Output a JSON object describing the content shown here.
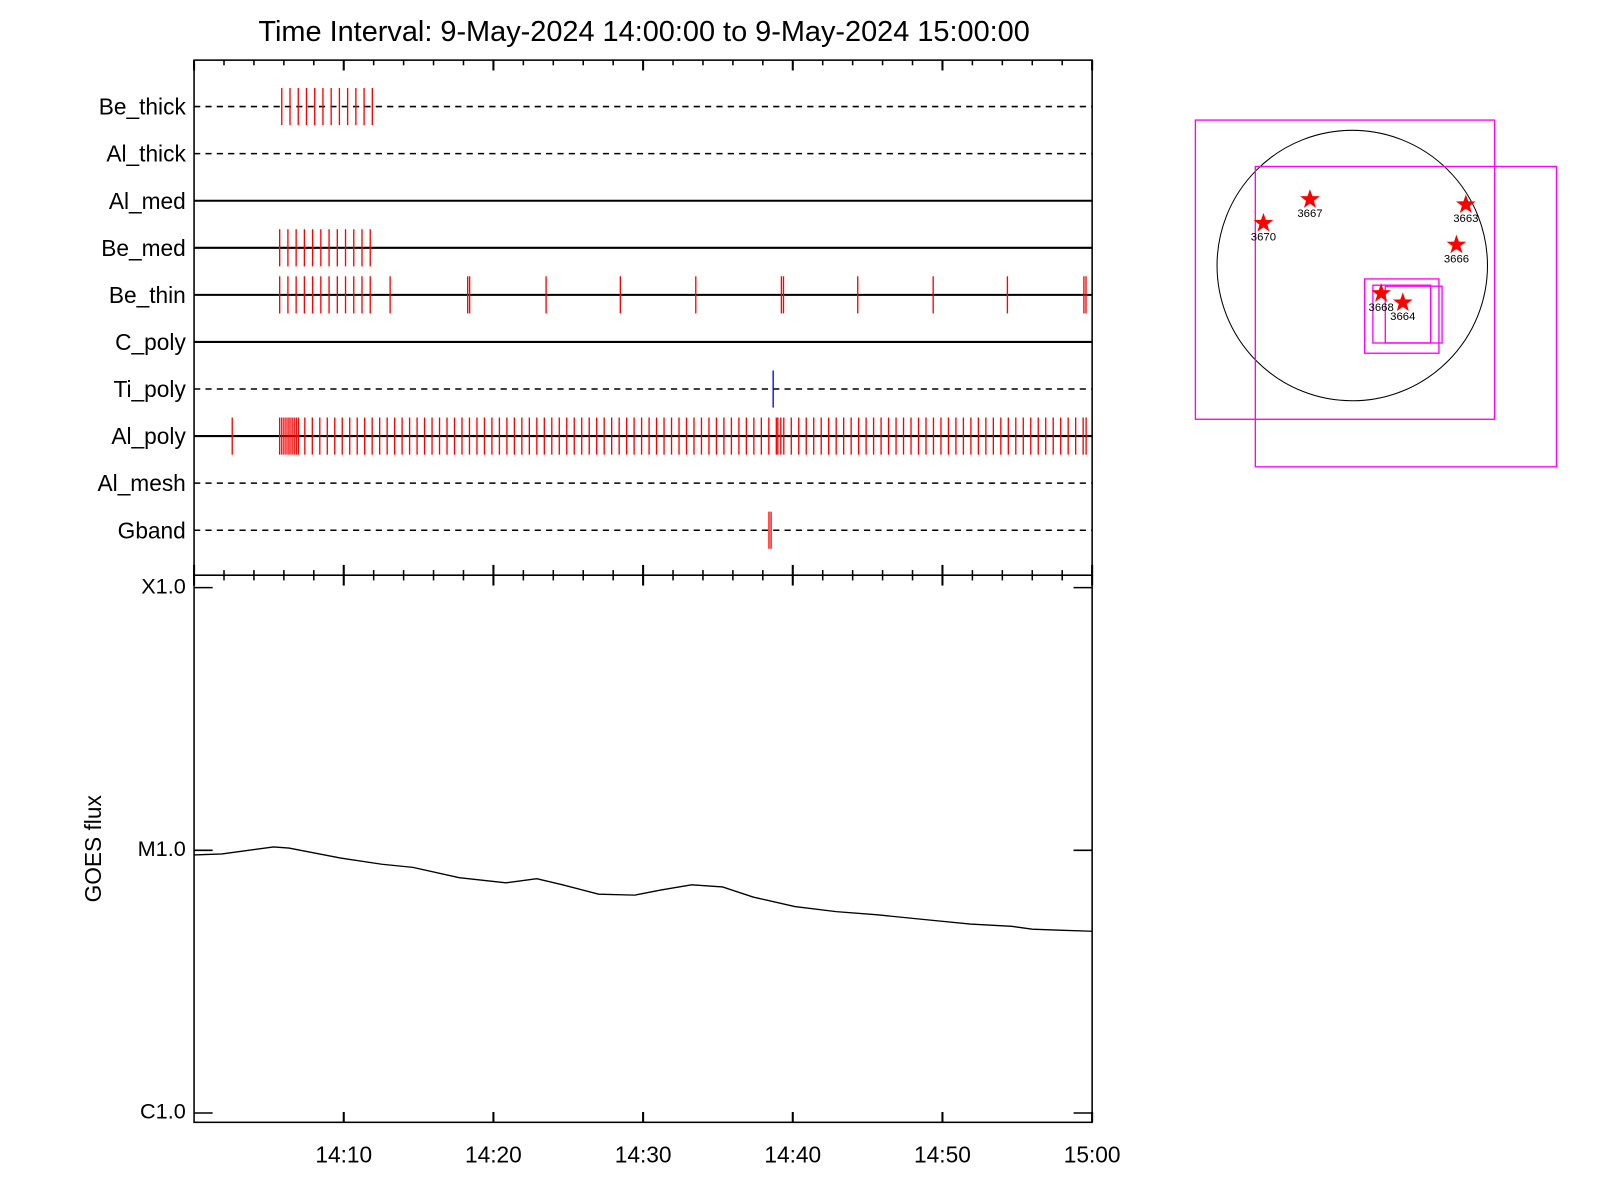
{
  "chart_data": [
    {
      "type": "events",
      "title": "Time Interval:  9-May-2024 14:00:00 to  9-May-2024 15:00:00",
      "xlim": [
        0,
        60
      ],
      "xticks": [
        0,
        10,
        20,
        30,
        40,
        50,
        60
      ],
      "xminorticks": [
        2,
        4,
        6,
        8,
        12,
        14,
        16,
        18,
        22,
        24,
        26,
        28,
        32,
        34,
        36,
        38,
        42,
        44,
        46,
        48,
        52,
        54,
        56,
        58
      ],
      "channels": [
        {
          "name": "Be_thick",
          "style": "dashed",
          "color": "#ff0000",
          "events": [
            5.86,
            6.41,
            6.96,
            7.51,
            8.06,
            8.61,
            9.16,
            9.71,
            10.26,
            10.81,
            11.36,
            11.91
          ]
        },
        {
          "name": "Al_thick",
          "style": "dashed",
          "color": "#ff0000",
          "events": []
        },
        {
          "name": "Al_med",
          "style": "solid",
          "color": "#ff0000",
          "events": []
        },
        {
          "name": "Be_med",
          "style": "solid",
          "color": "#ff0000",
          "events": [
            5.72,
            6.27,
            6.82,
            7.37,
            7.92,
            8.47,
            9.02,
            9.57,
            10.12,
            10.67,
            11.22,
            11.77
          ]
        },
        {
          "name": "Be_thin",
          "style": "solid",
          "color": "#ff0000",
          "events": [
            5.72,
            6.27,
            6.82,
            7.37,
            7.92,
            8.47,
            9.02,
            9.57,
            10.12,
            10.67,
            11.22,
            11.77,
            13.1,
            18.28,
            18.41,
            23.52,
            28.48,
            33.52,
            39.24,
            39.38,
            44.34,
            49.38,
            54.34,
            59.45,
            59.59
          ]
        },
        {
          "name": "C_poly",
          "style": "solid",
          "color": "#ff0000",
          "events": []
        },
        {
          "name": "Ti_poly",
          "style": "dashed",
          "color": "#0000ff",
          "events": [
            38.69
          ]
        },
        {
          "name": "Al_poly",
          "style": "solid",
          "color": "#ff0000",
          "events": [
            2.55,
            5.72,
            5.86,
            6.0,
            6.14,
            6.28,
            6.41,
            6.55,
            6.69,
            6.83,
            6.97,
            7.4,
            7.9,
            8.4,
            8.9,
            9.4,
            9.9,
            10.4,
            10.9,
            11.4,
            11.9,
            12.4,
            12.9,
            13.4,
            13.9,
            14.4,
            14.9,
            15.4,
            15.9,
            16.4,
            16.9,
            17.4,
            17.9,
            18.4,
            18.9,
            19.4,
            19.9,
            20.4,
            20.9,
            21.4,
            21.9,
            22.4,
            22.9,
            23.4,
            23.9,
            24.4,
            24.9,
            25.4,
            25.9,
            26.4,
            26.9,
            27.4,
            27.9,
            28.4,
            28.9,
            29.4,
            29.9,
            30.4,
            30.9,
            31.4,
            31.9,
            32.4,
            32.9,
            33.4,
            33.9,
            34.4,
            34.9,
            35.4,
            35.9,
            36.4,
            36.9,
            37.4,
            37.9,
            38.4,
            38.9,
            39.0,
            39.2,
            39.4,
            39.9,
            40.4,
            40.9,
            41.4,
            41.9,
            42.4,
            42.9,
            43.4,
            43.9,
            44.4,
            44.9,
            45.4,
            45.9,
            46.4,
            46.9,
            47.4,
            47.9,
            48.4,
            48.9,
            49.4,
            49.9,
            50.4,
            50.9,
            51.4,
            51.9,
            52.4,
            52.9,
            53.4,
            53.9,
            54.4,
            54.9,
            55.4,
            55.9,
            56.4,
            56.9,
            57.4,
            57.9,
            58.4,
            58.9,
            59.4,
            59.6
          ]
        },
        {
          "name": "Al_mesh",
          "style": "dashed",
          "color": "#ff0000",
          "events": []
        },
        {
          "name": "Gband",
          "style": "dashed",
          "color": "#ff0000",
          "events": [
            38.41,
            38.55
          ]
        }
      ]
    },
    {
      "type": "line",
      "ylabel": "GOES flux",
      "log_scale": true,
      "color": "#000000",
      "xlim": [
        0,
        60
      ],
      "xticks": [
        {
          "value": 10,
          "label": "14:10"
        },
        {
          "value": 20,
          "label": "14:20"
        },
        {
          "value": 30,
          "label": "14:30"
        },
        {
          "value": 40,
          "label": "14:40"
        },
        {
          "value": 50,
          "label": "14:50"
        },
        {
          "value": 60,
          "label": "15:00"
        }
      ],
      "ylim": [
        1e-06,
        0.0001
      ],
      "yticks": [
        {
          "value": 1e-06,
          "label": "C1.0"
        },
        {
          "value": 1e-05,
          "label": "M1.0"
        },
        {
          "value": 0.0001,
          "label": "X1.0"
        }
      ],
      "x": [
        0,
        1.86,
        5.31,
        6.34,
        9.79,
        12.55,
        14.62,
        17.72,
        20.83,
        22.9,
        24.62,
        27.03,
        29.45,
        31.17,
        33.24,
        35.31,
        37.38,
        40.14,
        42.9,
        45.66,
        49.1,
        51.86,
        54.62,
        56,
        58.07,
        60
      ],
      "values": [
        9.6e-06,
        9.69e-06,
        1.03e-05,
        1.02e-05,
        9.34e-06,
        8.85e-06,
        8.61e-06,
        7.87e-06,
        7.52e-06,
        7.8e-06,
        7.39e-06,
        6.81e-06,
        6.75e-06,
        7.06e-06,
        7.39e-06,
        7.25e-06,
        6.63e-06,
        6.11e-06,
        5.84e-06,
        5.68e-06,
        5.43e-06,
        5.24e-06,
        5.14e-06,
        5.01e-06,
        4.96e-06,
        4.92e-06
      ]
    },
    {
      "type": "map",
      "box_color": "#ff00ff",
      "marker_color": "#ff0000",
      "fov_boxes": [
        {
          "x0": -1102,
          "x1": 1000,
          "y0": -1080,
          "y1": 1022
        },
        {
          "x0": -681,
          "x1": 1435,
          "y0": -1414,
          "y1": 696
        },
        {
          "x0": 87,
          "x1": 609,
          "y0": -616,
          "y1": -94
        },
        {
          "x0": 145,
          "x1": 551,
          "y0": -544,
          "y1": -138
        },
        {
          "x0": 232,
          "x1": 631,
          "y0": -544,
          "y1": -145
        }
      ],
      "regions": [
        {
          "name": "3670",
          "x": -624,
          "y": 297
        },
        {
          "name": "3667",
          "x": -297,
          "y": 464
        },
        {
          "name": "3663",
          "x": 798,
          "y": 428
        },
        {
          "name": "3666",
          "x": 732,
          "y": 145
        },
        {
          "name": "3668",
          "x": 203,
          "y": -196
        },
        {
          "name": "3664",
          "x": 355,
          "y": -261
        }
      ]
    }
  ]
}
